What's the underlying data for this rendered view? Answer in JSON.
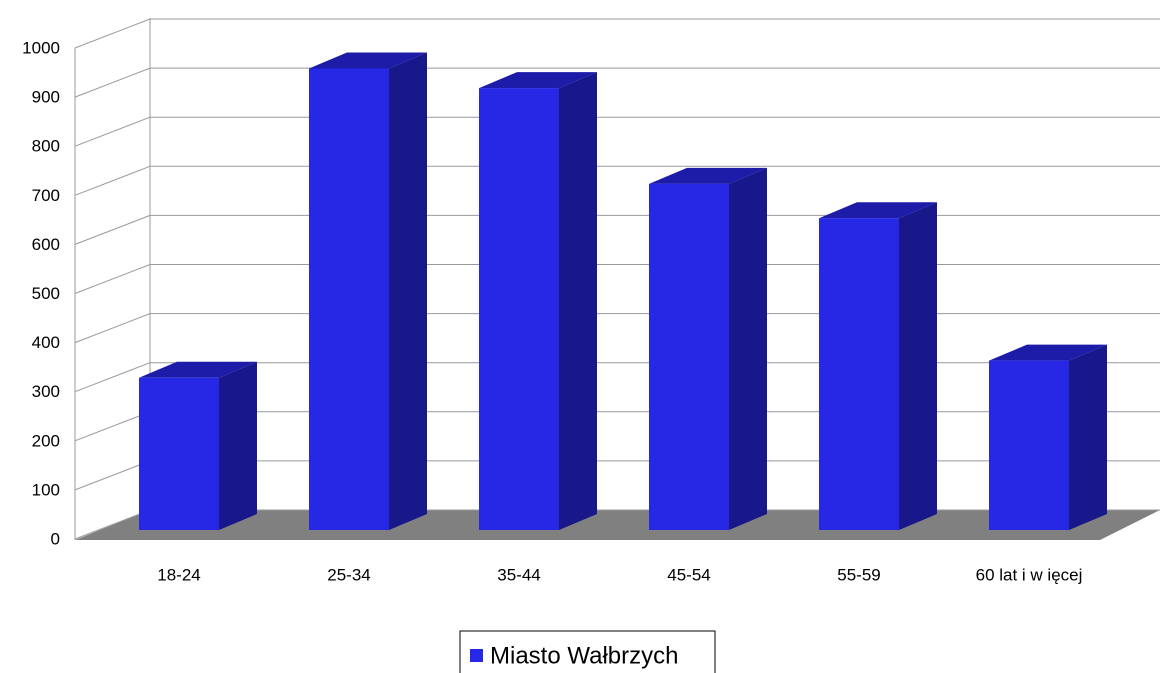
{
  "chart_data": {
    "type": "bar3d",
    "categories": [
      "18-24",
      "25-34",
      "35-44",
      "45-54",
      "55-59",
      "60 lat i w ięcej"
    ],
    "series": [
      {
        "name": "Miasto Wałbrzych",
        "color": "#2727e6",
        "values": [
          310,
          940,
          900,
          705,
          635,
          345
        ]
      }
    ],
    "ylim": [
      0,
      1000
    ],
    "yticks": [
      0,
      100,
      200,
      300,
      400,
      500,
      600,
      700,
      800,
      900,
      1000
    ],
    "grid": true,
    "legend": "bottom"
  }
}
